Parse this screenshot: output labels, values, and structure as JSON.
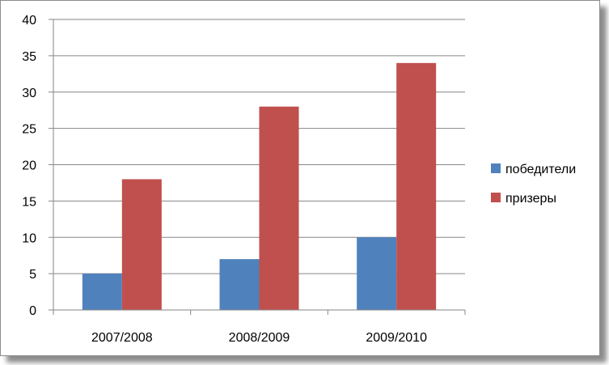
{
  "chart_data": {
    "type": "bar",
    "title": "",
    "xlabel": "",
    "ylabel": "",
    "categories": [
      "2007/2008",
      "2008/2009",
      "2009/2010"
    ],
    "series": [
      {
        "name": "победители",
        "values": [
          5,
          7,
          10
        ],
        "color": "#4F81BD"
      },
      {
        "name": "призеры",
        "values": [
          18,
          28,
          34
        ],
        "color": "#C0504D"
      }
    ],
    "ylim": [
      0,
      40
    ],
    "yticks": [
      "0",
      "5",
      "10",
      "15",
      "20",
      "25",
      "30",
      "35",
      "40"
    ],
    "grid": true,
    "legend_position": "right"
  }
}
